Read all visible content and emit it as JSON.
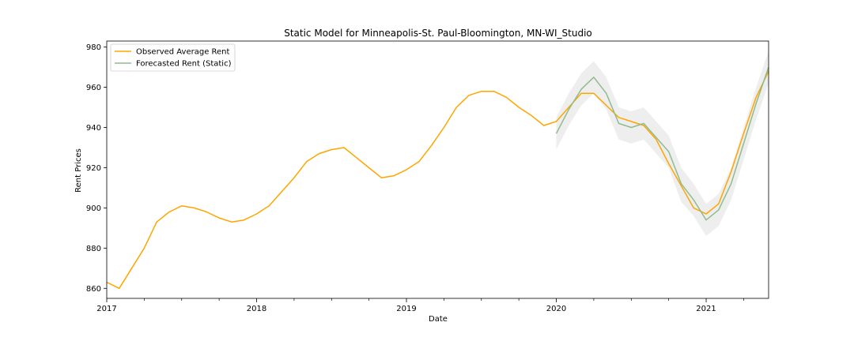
{
  "chart_data": {
    "type": "line",
    "title": "Static Model for Minneapolis-St. Paul-Bloomington, MN-WI_Studio",
    "xlabel": "Date",
    "ylabel": "Rent Prices",
    "xlim": [
      "2017-01",
      "2021-06"
    ],
    "ylim": [
      855,
      983
    ],
    "x_ticks": [
      "2017",
      "2018",
      "2019",
      "2020",
      "2021"
    ],
    "y_ticks": [
      860,
      880,
      900,
      920,
      940,
      960,
      980
    ],
    "grid": false,
    "legend_position": "top-left",
    "series": [
      {
        "name": "Observed Average Rent",
        "color": "#ffa500",
        "x": [
          "2017-01",
          "2017-02",
          "2017-03",
          "2017-04",
          "2017-05",
          "2017-06",
          "2017-07",
          "2017-08",
          "2017-09",
          "2017-10",
          "2017-11",
          "2017-12",
          "2018-01",
          "2018-02",
          "2018-03",
          "2018-04",
          "2018-05",
          "2018-06",
          "2018-07",
          "2018-08",
          "2018-09",
          "2018-10",
          "2018-11",
          "2018-12",
          "2019-01",
          "2019-02",
          "2019-03",
          "2019-04",
          "2019-05",
          "2019-06",
          "2019-07",
          "2019-08",
          "2019-09",
          "2019-10",
          "2019-11",
          "2019-12",
          "2020-01",
          "2020-02",
          "2020-03",
          "2020-04",
          "2020-05",
          "2020-06",
          "2020-07",
          "2020-08",
          "2020-09",
          "2020-10",
          "2020-11",
          "2020-12",
          "2021-01",
          "2021-02",
          "2021-03",
          "2021-04",
          "2021-05",
          "2021-06"
        ],
        "values": [
          863,
          860,
          870,
          880,
          893,
          898,
          901,
          900,
          898,
          895,
          893,
          894,
          897,
          901,
          908,
          915,
          923,
          927,
          929,
          930,
          925,
          920,
          915,
          916,
          919,
          923,
          931,
          940,
          950,
          956,
          958,
          958,
          955,
          950,
          946,
          941,
          943,
          950,
          957,
          957,
          951,
          945,
          943,
          941,
          934,
          922,
          911,
          900,
          897,
          902,
          918,
          937,
          955,
          968
        ]
      },
      {
        "name": "Forecasted Rent (Static)",
        "color": "#8fbc8f",
        "x": [
          "2020-01",
          "2020-02",
          "2020-03",
          "2020-04",
          "2020-05",
          "2020-06",
          "2020-07",
          "2020-08",
          "2020-09",
          "2020-10",
          "2020-11",
          "2020-12",
          "2021-01",
          "2021-02",
          "2021-03",
          "2021-04",
          "2021-05",
          "2021-06"
        ],
        "values": [
          937,
          949,
          959,
          965,
          957,
          942,
          940,
          942,
          935,
          928,
          912,
          904,
          894,
          899,
          912,
          932,
          952,
          970
        ],
        "ci_lower": [
          929,
          941,
          951,
          957,
          949,
          934,
          932,
          934,
          927,
          920,
          903,
          896,
          886,
          891,
          904,
          924,
          944,
          962
        ],
        "ci_upper": [
          945,
          957,
          967,
          973,
          965,
          950,
          948,
          950,
          943,
          936,
          920,
          912,
          902,
          907,
          920,
          940,
          960,
          978
        ]
      }
    ]
  }
}
